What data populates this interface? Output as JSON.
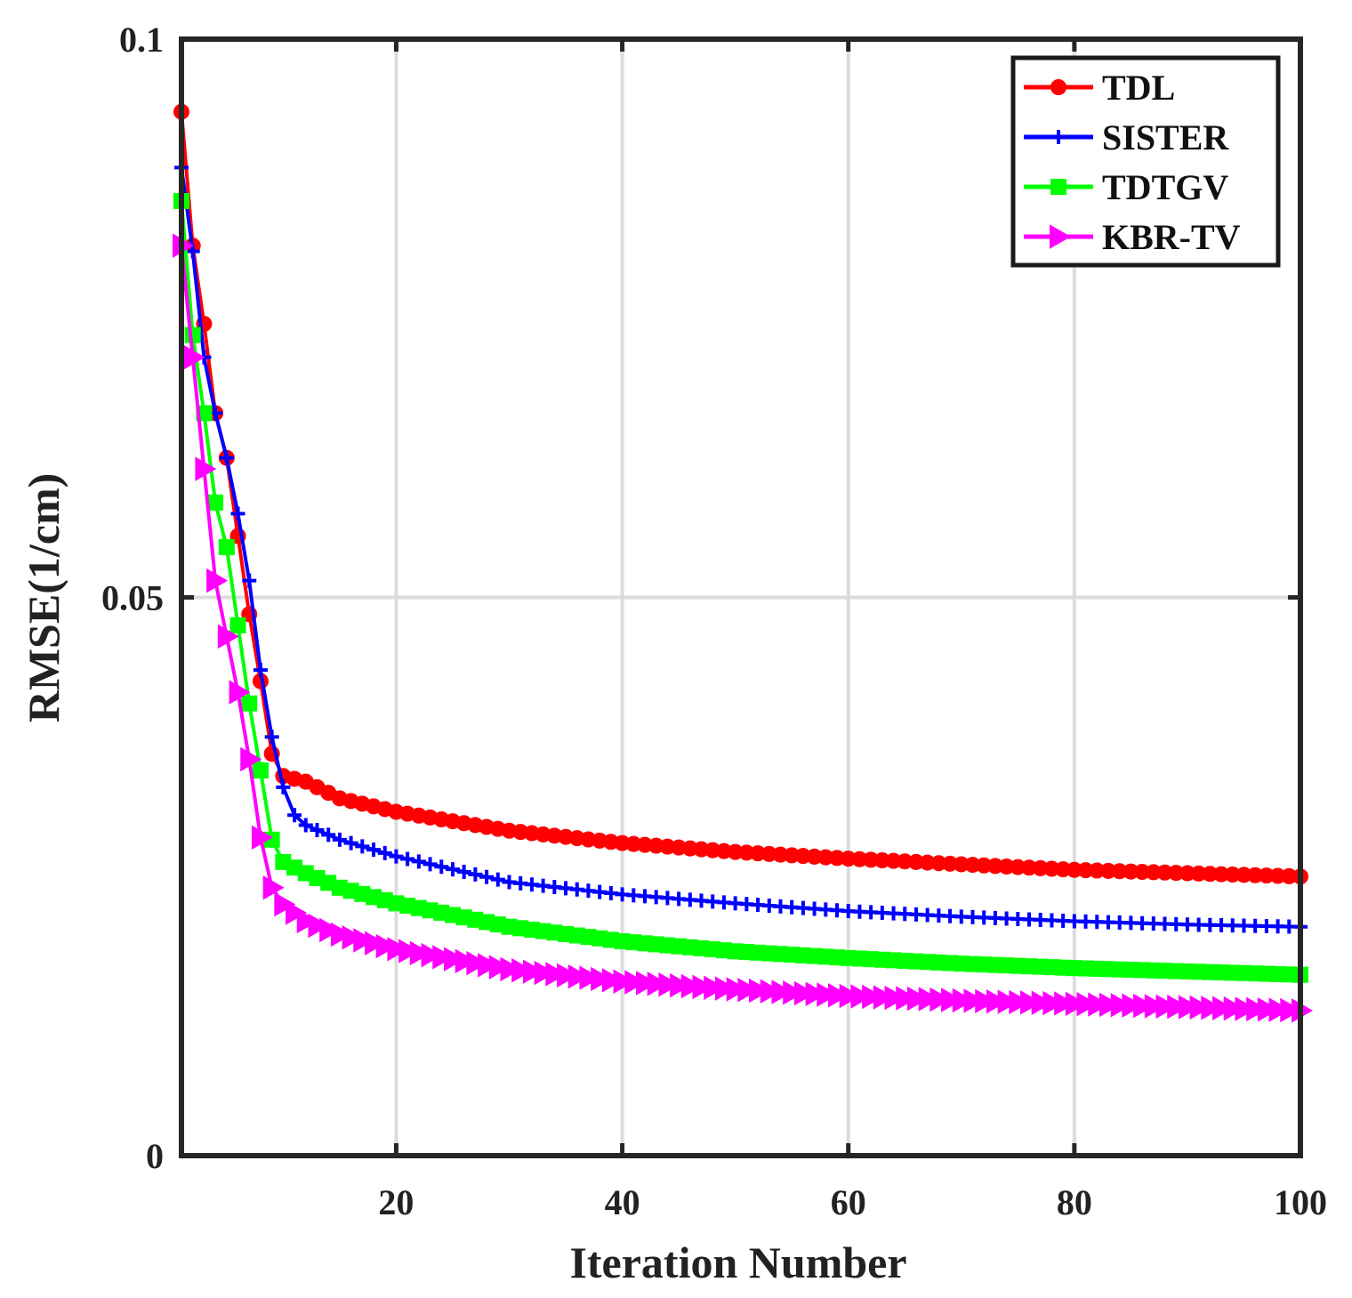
{
  "chart_data": {
    "type": "line",
    "xlabel": "Iteration Number",
    "ylabel": "RMSE(1/cm)",
    "xlim": [
      1,
      100
    ],
    "ylim": [
      0,
      0.1
    ],
    "xticks": [
      20,
      40,
      60,
      80,
      100
    ],
    "xtick_labels": [
      "20",
      "40",
      "60",
      "80",
      "100"
    ],
    "yticks": [
      0,
      0.05,
      0.1
    ],
    "ytick_labels": [
      "0",
      "0.05",
      "0.1"
    ],
    "grid": true,
    "legend_position": "top-right",
    "series": [
      {
        "name": "TDL",
        "color": "#ff0000",
        "marker": "circle",
        "x": [
          1,
          2,
          3,
          4,
          5,
          6,
          7,
          8,
          9,
          10,
          12,
          15,
          20,
          30,
          40,
          50,
          60,
          70,
          80,
          90,
          100
        ],
        "values": [
          0.0935,
          0.0815,
          0.0745,
          0.0665,
          0.0625,
          0.0555,
          0.0485,
          0.0425,
          0.036,
          0.034,
          0.0335,
          0.032,
          0.0308,
          0.0291,
          0.028,
          0.0272,
          0.0266,
          0.0261,
          0.0256,
          0.0253,
          0.025
        ]
      },
      {
        "name": "SISTER",
        "color": "#0000ff",
        "marker": "plus",
        "x": [
          1,
          2,
          3,
          4,
          5,
          6,
          7,
          8,
          9,
          10,
          11,
          12,
          15,
          20,
          30,
          40,
          50,
          60,
          70,
          80,
          90,
          100
        ],
        "values": [
          0.0885,
          0.081,
          0.0715,
          0.0665,
          0.0625,
          0.0575,
          0.0515,
          0.0435,
          0.0375,
          0.033,
          0.0305,
          0.0296,
          0.0283,
          0.0268,
          0.0245,
          0.0234,
          0.0226,
          0.0219,
          0.0214,
          0.021,
          0.0207,
          0.0205
        ]
      },
      {
        "name": "TDTGV",
        "color": "#00ff00",
        "marker": "square",
        "x": [
          1,
          2,
          3,
          4,
          5,
          6,
          7,
          8,
          9,
          10,
          12,
          15,
          20,
          30,
          40,
          50,
          60,
          70,
          80,
          90,
          100
        ],
        "values": [
          0.0855,
          0.0735,
          0.0665,
          0.0585,
          0.0545,
          0.0475,
          0.0405,
          0.0345,
          0.0283,
          0.0263,
          0.0253,
          0.024,
          0.0226,
          0.0205,
          0.0192,
          0.0183,
          0.0177,
          0.0172,
          0.0168,
          0.0165,
          0.0162
        ]
      },
      {
        "name": "KBR-TV",
        "color": "#ff00ff",
        "marker": "triangle-right",
        "x": [
          1,
          2,
          3,
          4,
          5,
          6,
          7,
          8,
          9,
          10,
          12,
          15,
          20,
          30,
          40,
          50,
          60,
          70,
          80,
          90,
          100
        ],
        "values": [
          0.0815,
          0.0715,
          0.0615,
          0.0515,
          0.0465,
          0.0415,
          0.0355,
          0.0285,
          0.024,
          0.0225,
          0.021,
          0.0198,
          0.0185,
          0.0167,
          0.0156,
          0.0149,
          0.0143,
          0.0139,
          0.0136,
          0.0133,
          0.013
        ]
      }
    ]
  }
}
